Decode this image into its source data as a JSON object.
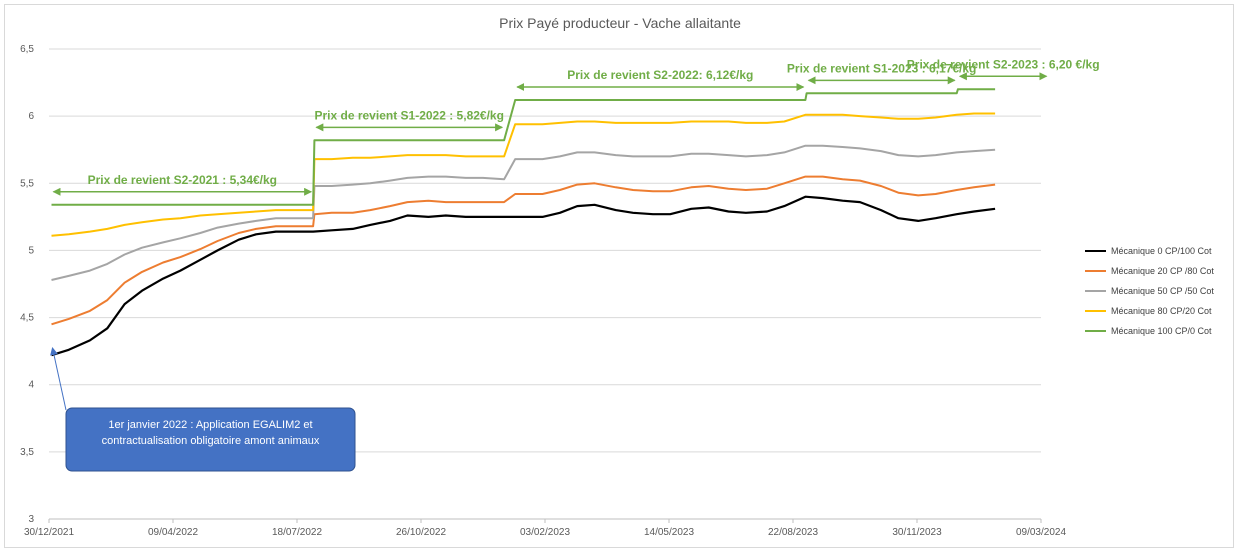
{
  "chart_data": {
    "type": "line",
    "title": "Prix Payé producteur - Vache allaitante",
    "xlabel": "",
    "ylabel": "",
    "x_ticks": [
      "30/12/2021",
      "09/04/2022",
      "18/07/2022",
      "26/10/2022",
      "03/02/2023",
      "14/05/2023",
      "22/08/2023",
      "30/11/2023",
      "09/03/2024"
    ],
    "x_range": [
      "2021-12-30",
      "2024-03-09"
    ],
    "y_ticks": [
      "3",
      "3,5",
      "4",
      "4,5",
      "5",
      "5,5",
      "6",
      "6,5"
    ],
    "ylim": [
      3,
      6.5
    ],
    "grid": true,
    "legend_position": "right",
    "series": [
      {
        "name": "Mécanique 0 CP/100 Cot",
        "color": "#000000",
        "points": [
          [
            "2022-01-01",
            4.22
          ],
          [
            "2022-01-15",
            4.26
          ],
          [
            "2022-02-01",
            4.33
          ],
          [
            "2022-02-15",
            4.42
          ],
          [
            "2022-03-01",
            4.6
          ],
          [
            "2022-03-15",
            4.7
          ],
          [
            "2022-04-01",
            4.79
          ],
          [
            "2022-04-15",
            4.85
          ],
          [
            "2022-05-01",
            4.93
          ],
          [
            "2022-05-15",
            5.0
          ],
          [
            "2022-06-01",
            5.08
          ],
          [
            "2022-06-15",
            5.12
          ],
          [
            "2022-07-01",
            5.14
          ],
          [
            "2022-07-31",
            5.14
          ],
          [
            "2022-08-15",
            5.15
          ],
          [
            "2022-09-01",
            5.16
          ],
          [
            "2022-09-15",
            5.19
          ],
          [
            "2022-10-01",
            5.22
          ],
          [
            "2022-10-15",
            5.26
          ],
          [
            "2022-11-01",
            5.25
          ],
          [
            "2022-11-15",
            5.26
          ],
          [
            "2022-12-01",
            5.25
          ],
          [
            "2022-12-15",
            5.25
          ],
          [
            "2023-01-01",
            5.25
          ],
          [
            "2023-01-15",
            5.25
          ],
          [
            "2023-02-01",
            5.25
          ],
          [
            "2023-02-15",
            5.28
          ],
          [
            "2023-03-01",
            5.33
          ],
          [
            "2023-03-15",
            5.34
          ],
          [
            "2023-04-01",
            5.3
          ],
          [
            "2023-04-15",
            5.28
          ],
          [
            "2023-05-01",
            5.27
          ],
          [
            "2023-05-15",
            5.27
          ],
          [
            "2023-06-01",
            5.31
          ],
          [
            "2023-06-15",
            5.32
          ],
          [
            "2023-07-01",
            5.29
          ],
          [
            "2023-07-15",
            5.28
          ],
          [
            "2023-08-01",
            5.29
          ],
          [
            "2023-08-15",
            5.33
          ],
          [
            "2023-09-01",
            5.4
          ],
          [
            "2023-09-15",
            5.39
          ],
          [
            "2023-10-01",
            5.37
          ],
          [
            "2023-10-15",
            5.36
          ],
          [
            "2023-11-01",
            5.3
          ],
          [
            "2023-11-15",
            5.24
          ],
          [
            "2023-12-01",
            5.22
          ],
          [
            "2023-12-15",
            5.24
          ],
          [
            "2024-01-01",
            5.27
          ],
          [
            "2024-01-15",
            5.29
          ],
          [
            "2024-02-01",
            5.31
          ]
        ]
      },
      {
        "name": "Mécanique 20 CP /80 Cot",
        "color": "#ed7d31",
        "points": [
          [
            "2022-01-01",
            4.45
          ],
          [
            "2022-01-15",
            4.49
          ],
          [
            "2022-02-01",
            4.55
          ],
          [
            "2022-02-15",
            4.63
          ],
          [
            "2022-03-01",
            4.76
          ],
          [
            "2022-03-15",
            4.84
          ],
          [
            "2022-04-01",
            4.91
          ],
          [
            "2022-04-15",
            4.95
          ],
          [
            "2022-05-01",
            5.01
          ],
          [
            "2022-05-15",
            5.07
          ],
          [
            "2022-06-01",
            5.13
          ],
          [
            "2022-06-15",
            5.16
          ],
          [
            "2022-07-01",
            5.18
          ],
          [
            "2022-07-31",
            5.18
          ],
          [
            "2022-08-01",
            5.27
          ],
          [
            "2022-08-15",
            5.28
          ],
          [
            "2022-09-01",
            5.28
          ],
          [
            "2022-09-15",
            5.3
          ],
          [
            "2022-10-01",
            5.33
          ],
          [
            "2022-10-15",
            5.36
          ],
          [
            "2022-11-01",
            5.37
          ],
          [
            "2022-11-15",
            5.36
          ],
          [
            "2022-12-01",
            5.36
          ],
          [
            "2022-12-15",
            5.36
          ],
          [
            "2023-01-01",
            5.36
          ],
          [
            "2023-01-10",
            5.42
          ],
          [
            "2023-02-01",
            5.42
          ],
          [
            "2023-02-15",
            5.45
          ],
          [
            "2023-03-01",
            5.49
          ],
          [
            "2023-03-15",
            5.5
          ],
          [
            "2023-04-01",
            5.47
          ],
          [
            "2023-04-15",
            5.45
          ],
          [
            "2023-05-01",
            5.44
          ],
          [
            "2023-05-15",
            5.44
          ],
          [
            "2023-06-01",
            5.47
          ],
          [
            "2023-06-15",
            5.48
          ],
          [
            "2023-07-01",
            5.46
          ],
          [
            "2023-07-15",
            5.45
          ],
          [
            "2023-08-01",
            5.46
          ],
          [
            "2023-08-15",
            5.5
          ],
          [
            "2023-09-01",
            5.55
          ],
          [
            "2023-09-15",
            5.55
          ],
          [
            "2023-10-01",
            5.53
          ],
          [
            "2023-10-15",
            5.52
          ],
          [
            "2023-11-01",
            5.48
          ],
          [
            "2023-11-15",
            5.43
          ],
          [
            "2023-12-01",
            5.41
          ],
          [
            "2023-12-15",
            5.42
          ],
          [
            "2024-01-01",
            5.45
          ],
          [
            "2024-01-15",
            5.47
          ],
          [
            "2024-02-01",
            5.49
          ]
        ]
      },
      {
        "name": "Mécanique 50 CP /50 Cot",
        "color": "#a5a5a5",
        "points": [
          [
            "2022-01-01",
            4.78
          ],
          [
            "2022-01-15",
            4.81
          ],
          [
            "2022-02-01",
            4.85
          ],
          [
            "2022-02-15",
            4.9
          ],
          [
            "2022-03-01",
            4.97
          ],
          [
            "2022-03-15",
            5.02
          ],
          [
            "2022-04-01",
            5.06
          ],
          [
            "2022-04-15",
            5.09
          ],
          [
            "2022-05-01",
            5.13
          ],
          [
            "2022-05-15",
            5.17
          ],
          [
            "2022-06-01",
            5.2
          ],
          [
            "2022-06-15",
            5.22
          ],
          [
            "2022-07-01",
            5.24
          ],
          [
            "2022-07-31",
            5.24
          ],
          [
            "2022-08-01",
            5.48
          ],
          [
            "2022-08-15",
            5.48
          ],
          [
            "2022-09-01",
            5.49
          ],
          [
            "2022-09-15",
            5.5
          ],
          [
            "2022-10-01",
            5.52
          ],
          [
            "2022-10-15",
            5.54
          ],
          [
            "2022-11-01",
            5.55
          ],
          [
            "2022-11-15",
            5.55
          ],
          [
            "2022-12-01",
            5.54
          ],
          [
            "2022-12-15",
            5.54
          ],
          [
            "2023-01-01",
            5.53
          ],
          [
            "2023-01-10",
            5.68
          ],
          [
            "2023-02-01",
            5.68
          ],
          [
            "2023-02-15",
            5.7
          ],
          [
            "2023-03-01",
            5.73
          ],
          [
            "2023-03-15",
            5.73
          ],
          [
            "2023-04-01",
            5.71
          ],
          [
            "2023-04-15",
            5.7
          ],
          [
            "2023-05-01",
            5.7
          ],
          [
            "2023-05-15",
            5.7
          ],
          [
            "2023-06-01",
            5.72
          ],
          [
            "2023-06-15",
            5.72
          ],
          [
            "2023-07-01",
            5.71
          ],
          [
            "2023-07-15",
            5.7
          ],
          [
            "2023-08-01",
            5.71
          ],
          [
            "2023-08-15",
            5.73
          ],
          [
            "2023-09-01",
            5.78
          ],
          [
            "2023-09-15",
            5.78
          ],
          [
            "2023-10-01",
            5.77
          ],
          [
            "2023-10-15",
            5.76
          ],
          [
            "2023-11-01",
            5.74
          ],
          [
            "2023-11-15",
            5.71
          ],
          [
            "2023-12-01",
            5.7
          ],
          [
            "2023-12-15",
            5.71
          ],
          [
            "2024-01-01",
            5.73
          ],
          [
            "2024-01-15",
            5.74
          ],
          [
            "2024-02-01",
            5.75
          ]
        ]
      },
      {
        "name": "Mécanique 80 CP/20 Cot",
        "color": "#ffc000",
        "points": [
          [
            "2022-01-01",
            5.11
          ],
          [
            "2022-01-15",
            5.12
          ],
          [
            "2022-02-01",
            5.14
          ],
          [
            "2022-02-15",
            5.16
          ],
          [
            "2022-03-01",
            5.19
          ],
          [
            "2022-03-15",
            5.21
          ],
          [
            "2022-04-01",
            5.23
          ],
          [
            "2022-04-15",
            5.24
          ],
          [
            "2022-05-01",
            5.26
          ],
          [
            "2022-05-15",
            5.27
          ],
          [
            "2022-06-01",
            5.28
          ],
          [
            "2022-06-15",
            5.29
          ],
          [
            "2022-07-01",
            5.3
          ],
          [
            "2022-07-31",
            5.3
          ],
          [
            "2022-08-01",
            5.68
          ],
          [
            "2022-08-15",
            5.68
          ],
          [
            "2022-09-01",
            5.69
          ],
          [
            "2022-09-15",
            5.69
          ],
          [
            "2022-10-01",
            5.7
          ],
          [
            "2022-10-15",
            5.71
          ],
          [
            "2022-11-01",
            5.71
          ],
          [
            "2022-11-15",
            5.71
          ],
          [
            "2022-12-01",
            5.7
          ],
          [
            "2022-12-15",
            5.7
          ],
          [
            "2023-01-01",
            5.7
          ],
          [
            "2023-01-10",
            5.94
          ],
          [
            "2023-02-01",
            5.94
          ],
          [
            "2023-02-15",
            5.95
          ],
          [
            "2023-03-01",
            5.96
          ],
          [
            "2023-03-15",
            5.96
          ],
          [
            "2023-04-01",
            5.95
          ],
          [
            "2023-04-15",
            5.95
          ],
          [
            "2023-05-01",
            5.95
          ],
          [
            "2023-05-15",
            5.95
          ],
          [
            "2023-06-01",
            5.96
          ],
          [
            "2023-06-15",
            5.96
          ],
          [
            "2023-07-01",
            5.96
          ],
          [
            "2023-07-15",
            5.95
          ],
          [
            "2023-08-01",
            5.95
          ],
          [
            "2023-08-15",
            5.96
          ],
          [
            "2023-09-01",
            6.01
          ],
          [
            "2023-09-15",
            6.01
          ],
          [
            "2023-10-01",
            6.01
          ],
          [
            "2023-10-15",
            6.0
          ],
          [
            "2023-11-01",
            5.99
          ],
          [
            "2023-11-15",
            5.98
          ],
          [
            "2023-12-01",
            5.98
          ],
          [
            "2023-12-15",
            5.99
          ],
          [
            "2024-01-01",
            6.01
          ],
          [
            "2024-01-15",
            6.02
          ],
          [
            "2024-02-01",
            6.02
          ]
        ]
      },
      {
        "name": "Mécanique 100 CP/0 Cot",
        "color": "#70ad47",
        "points": [
          [
            "2022-01-01",
            5.34
          ],
          [
            "2022-07-31",
            5.34
          ],
          [
            "2022-08-01",
            5.82
          ],
          [
            "2023-01-01",
            5.82
          ],
          [
            "2023-01-10",
            6.12
          ],
          [
            "2023-09-01",
            6.12
          ],
          [
            "2023-09-02",
            6.17
          ],
          [
            "2024-01-01",
            6.17
          ],
          [
            "2024-01-02",
            6.2
          ],
          [
            "2024-02-01",
            6.2
          ]
        ]
      }
    ],
    "annotations": [
      {
        "text": "Prix de revient S2-2021 :  5,34€/kg",
        "arrow_from": "2022-01-01",
        "arrow_to": "2022-07-31",
        "value": 5.34
      },
      {
        "text": "Prix de revient S1-2022 : 5,82€/kg",
        "arrow_from": "2022-08-01",
        "arrow_to": "2023-01-01",
        "value": 5.82
      },
      {
        "text": "Prix de revient S2-2022:  6,12€/kg",
        "arrow_from": "2023-01-10",
        "arrow_to": "2023-09-01",
        "value": 6.12
      },
      {
        "text": "Prix de revient S1-2023 :  6,17€/kg",
        "arrow_from": "2023-09-02",
        "arrow_to": "2024-01-01",
        "value": 6.17
      },
      {
        "text": "Prix de revient S2-2023 :  6,20 €/kg",
        "arrow_from": "2024-01-02",
        "arrow_to": "2024-03-15",
        "value": 6.2
      }
    ],
    "callout": {
      "text_lines": [
        "1er janvier 2022 : Application EGALIM2 et",
        "contractualisation obligatoire amont animaux"
      ],
      "points_to": [
        "2022-01-01",
        4.05
      ],
      "color": "#4472c4"
    }
  }
}
